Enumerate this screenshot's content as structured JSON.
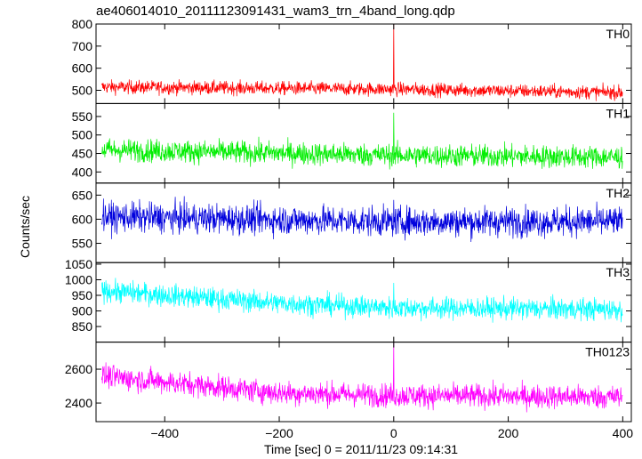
{
  "chart_data": {
    "type": "line",
    "title": "ae406014010_20111123091431_wam3_trn_4band_long.qdp",
    "xlabel": "Time [sec] 0 = 2011/11/23 09:14:31",
    "ylabel": "Counts/sec",
    "xlim": [
      -520,
      415
    ],
    "xticks": [
      -400,
      -200,
      0,
      200,
      400
    ],
    "grid": false,
    "panels": [
      {
        "name": "TH0",
        "color": "#ff0000",
        "ylim": [
          440,
          800
        ],
        "yticks": [
          500,
          600,
          700,
          800
        ],
        "baseline": [
          [
            -510,
            515
          ],
          [
            0,
            505
          ],
          [
            400,
            490
          ]
        ],
        "noise": 22,
        "spike": 800
      },
      {
        "name": "TH1",
        "color": "#00ee00",
        "ylim": [
          370,
          585
        ],
        "yticks": [
          400,
          450,
          500,
          550
        ],
        "baseline": [
          [
            -510,
            460
          ],
          [
            0,
            445
          ],
          [
            400,
            440
          ]
        ],
        "noise": 22,
        "spike": 560
      },
      {
        "name": "TH2",
        "color": "#0000dd",
        "ylim": [
          510,
          675
        ],
        "yticks": [
          550,
          600,
          650
        ],
        "baseline": [
          [
            -510,
            605
          ],
          [
            0,
            595
          ],
          [
            400,
            595
          ]
        ],
        "noise": 22,
        "spike": 640
      },
      {
        "name": "TH3",
        "color": "#00ffff",
        "ylim": [
          800,
          1055
        ],
        "yticks": [
          850,
          900,
          950,
          1000,
          1050
        ],
        "baseline": [
          [
            -510,
            965
          ],
          [
            -200,
            925
          ],
          [
            0,
            910
          ],
          [
            400,
            905
          ]
        ],
        "noise": 25,
        "spike": 990
      },
      {
        "name": "TH0123",
        "color": "#ff00ff",
        "ylim": [
          2290,
          2760
        ],
        "yticks": [
          2400,
          2600
        ],
        "baseline": [
          [
            -510,
            2560
          ],
          [
            -200,
            2460
          ],
          [
            0,
            2445
          ],
          [
            400,
            2435
          ]
        ],
        "noise": 50,
        "spike": 2760
      }
    ]
  }
}
